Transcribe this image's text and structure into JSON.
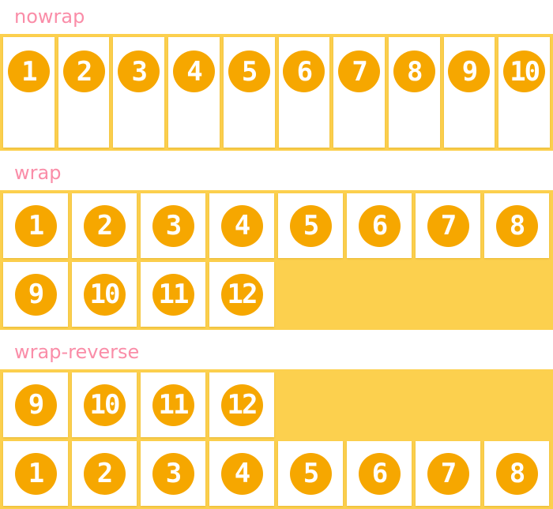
{
  "colors": {
    "label_pink": "#fa8da8",
    "container_gold": "#fcd04e",
    "circle_orange": "#f6a700",
    "item_bg": "#ffffff"
  },
  "sections": [
    {
      "label": "nowrap",
      "wrap_mode": "nowrap",
      "items": [
        "1",
        "2",
        "3",
        "4",
        "5",
        "6",
        "7",
        "8",
        "9",
        "10"
      ]
    },
    {
      "label": "wrap",
      "wrap_mode": "wrap",
      "items": [
        "1",
        "2",
        "3",
        "4",
        "5",
        "6",
        "7",
        "8",
        "9",
        "10",
        "11",
        "12"
      ]
    },
    {
      "label": "wrap-reverse",
      "wrap_mode": "wrap-reverse",
      "items": [
        "1",
        "2",
        "3",
        "4",
        "5",
        "6",
        "7",
        "8",
        "9",
        "10",
        "11",
        "12"
      ]
    }
  ]
}
